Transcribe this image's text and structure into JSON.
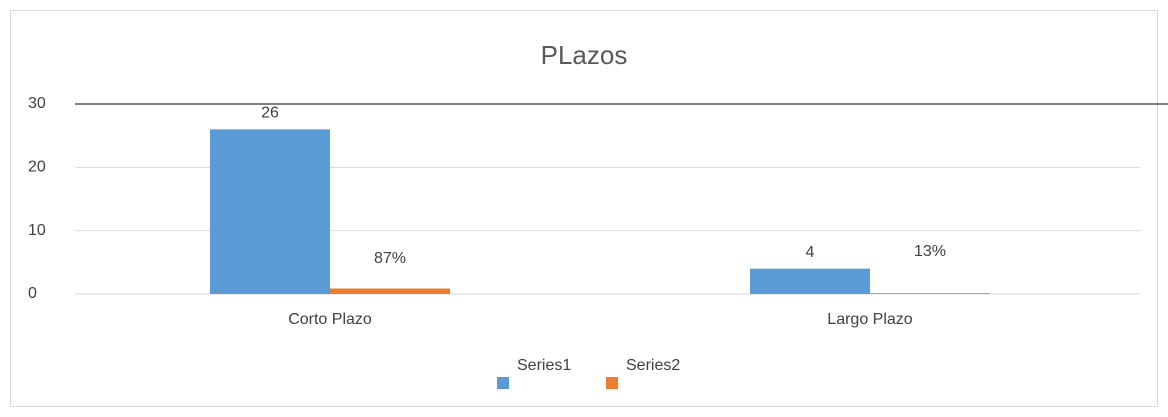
{
  "chart_data": {
    "type": "bar",
    "title": "PLazos",
    "categories": [
      "Corto Plazo",
      "Largo Plazo"
    ],
    "series": [
      {
        "name": "Series1",
        "color": "#5b9bd5",
        "values": [
          26,
          4
        ]
      },
      {
        "name": "Series2",
        "color": "#ed7d31",
        "values": [
          0.87,
          0.13
        ],
        "value_labels": [
          "87%",
          "13%"
        ]
      }
    ],
    "ylim": [
      0,
      30
    ],
    "yticks": [
      0,
      10,
      20,
      30
    ],
    "grid": true
  }
}
